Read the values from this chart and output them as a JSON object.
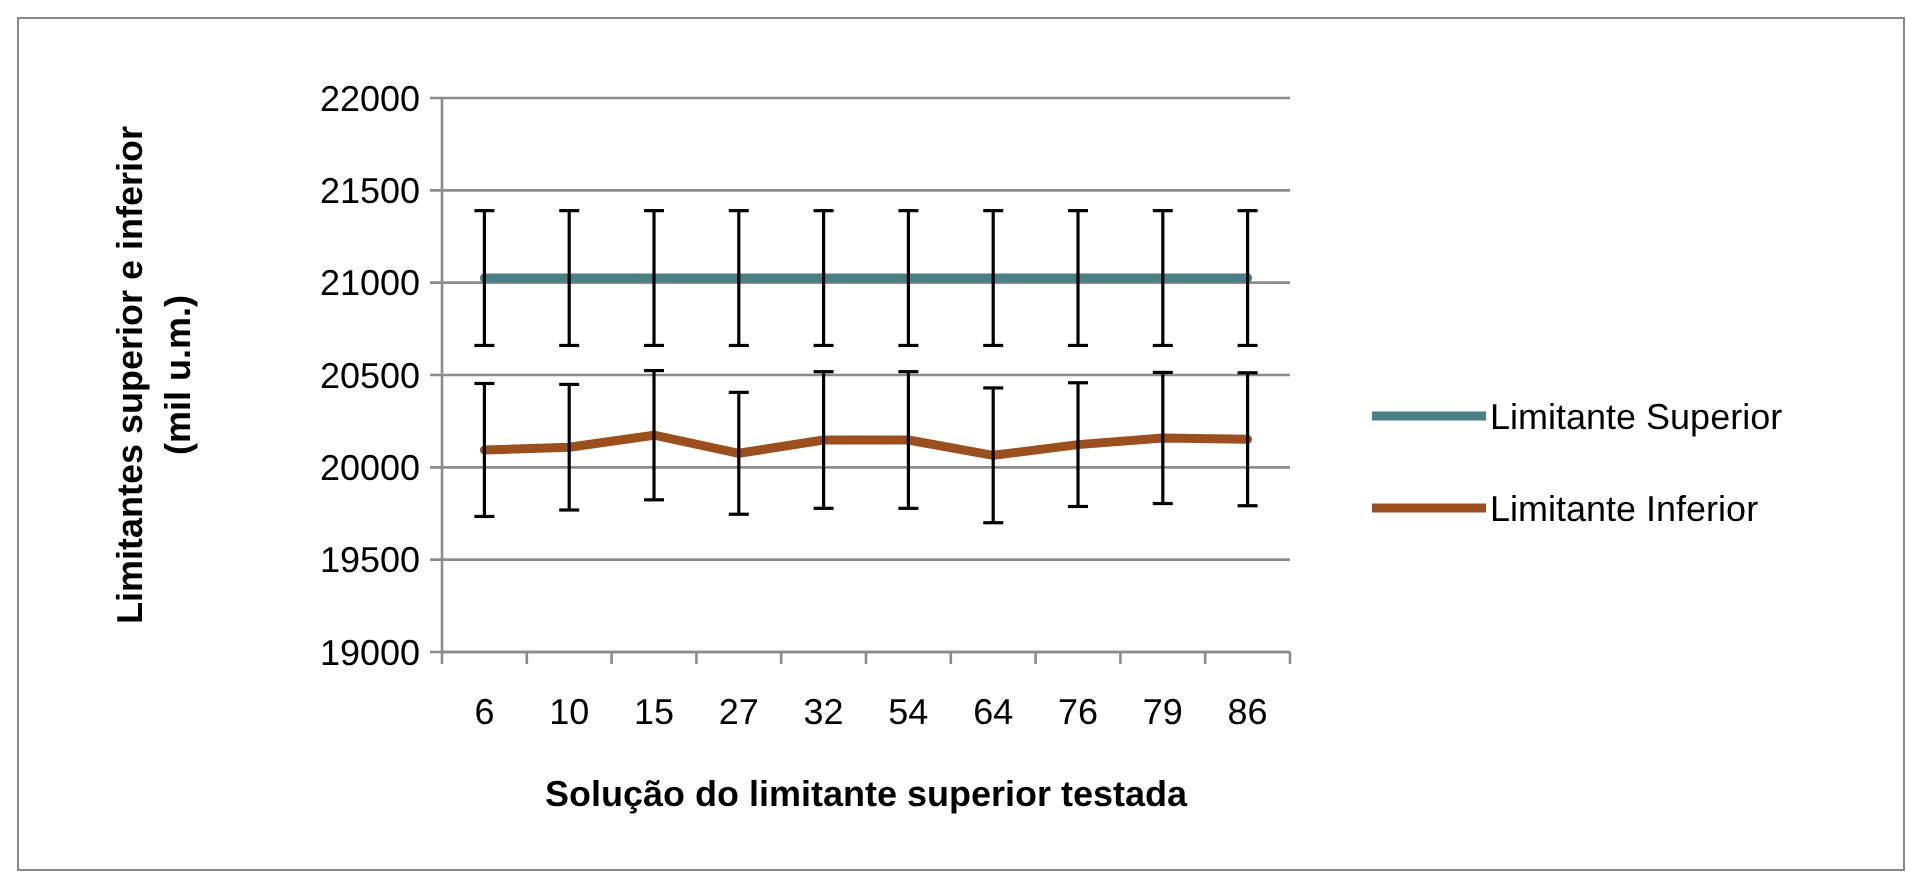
{
  "chart_data": {
    "type": "line",
    "xlabel": "Solução do limitante superior testada",
    "ylabel": "Limitantes superior e inferior\n(mil u.m.)",
    "categories": [
      "6",
      "10",
      "15",
      "27",
      "32",
      "54",
      "64",
      "76",
      "79",
      "86"
    ],
    "series": [
      {
        "name": "Limitante Superior",
        "color": "#4a7f86",
        "values": [
          21025,
          21025,
          21025,
          21025,
          21025,
          21025,
          21025,
          21025,
          21025,
          21025
        ],
        "errors": [
          365,
          365,
          365,
          365,
          365,
          365,
          365,
          365,
          365,
          365
        ]
      },
      {
        "name": "Limitante Inferior",
        "color": "#9c4f1e",
        "values": [
          20094,
          20109,
          20174,
          20076,
          20148,
          20148,
          20065,
          20123,
          20159,
          20152
        ],
        "errors": [
          360,
          340,
          350,
          330,
          370,
          370,
          365,
          335,
          355,
          360
        ]
      }
    ],
    "ylim": [
      19000,
      22000
    ],
    "yticks": [
      19000,
      19500,
      20000,
      20500,
      21000,
      21500,
      22000
    ],
    "grid": "y",
    "legend": "right",
    "marker": "none"
  }
}
